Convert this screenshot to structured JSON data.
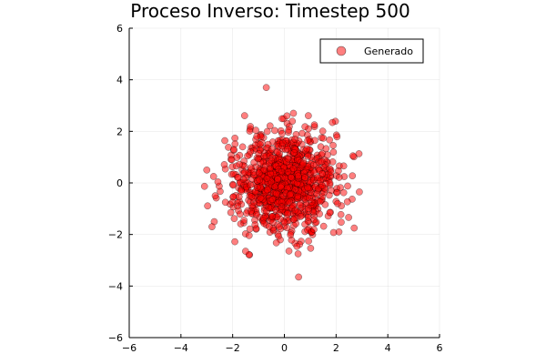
{
  "chart_data": {
    "type": "scatter",
    "title": "Proceso Inverso: Timestep 500",
    "xlabel": "",
    "ylabel": "",
    "xlim": [
      -6,
      6
    ],
    "ylim": [
      -6,
      6
    ],
    "xticks": [
      -6,
      -4,
      -2,
      0,
      2,
      4,
      6
    ],
    "yticks": [
      -6,
      -4,
      -2,
      0,
      2,
      4,
      6
    ],
    "xtick_labels": [
      "−6",
      "−4",
      "−2",
      "0",
      "2",
      "4",
      "6"
    ],
    "ytick_labels": [
      "−6",
      "−4",
      "−2",
      "0",
      "2",
      "4",
      "6"
    ],
    "grid": true,
    "legend_position": "top-right",
    "series": [
      {
        "name": "Generado",
        "color": "#ff0000",
        "marker_stroke": "#000000",
        "opacity": 0.5,
        "count": 1000,
        "distribution": "gaussian",
        "mean": [
          0,
          0
        ],
        "std": [
          1,
          1
        ],
        "seed": 500,
        "outliers": [
          {
            "x": -0.7,
            "y": 3.7
          },
          {
            "x": 0.55,
            "y": -3.65
          },
          {
            "x": -2.8,
            "y": -1.7
          },
          {
            "x": -3.0,
            "y": 0.5
          },
          {
            "x": 2.9,
            "y": -0.35
          },
          {
            "x": 2.7,
            "y": -1.75
          },
          {
            "x": 2.65,
            "y": 1.05
          },
          {
            "x": -1.5,
            "y": -2.65
          },
          {
            "x": 0.1,
            "y": 2.6
          },
          {
            "x": 0.35,
            "y": 2.7
          }
        ]
      }
    ]
  }
}
